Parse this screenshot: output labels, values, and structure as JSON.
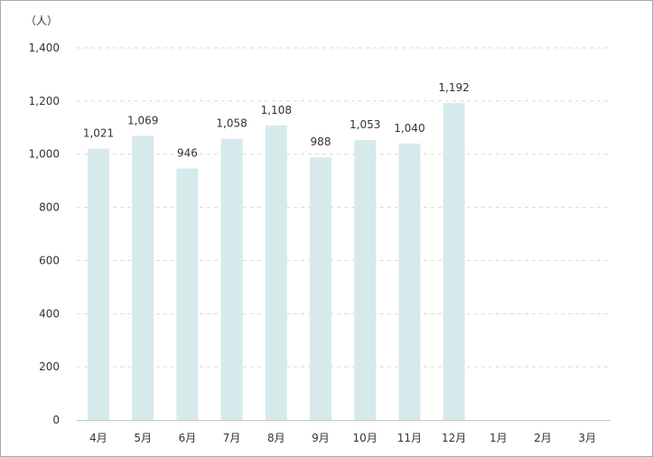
{
  "chart_data": {
    "type": "bar",
    "unit_label": "（人）",
    "categories": [
      "4月",
      "5月",
      "6月",
      "7月",
      "8月",
      "9月",
      "10月",
      "11月",
      "12月",
      "1月",
      "2月",
      "3月"
    ],
    "values": [
      1021,
      1069,
      946,
      1058,
      1108,
      988,
      1053,
      1040,
      1192,
      null,
      null,
      null
    ],
    "data_labels": [
      "1,021",
      "1,069",
      "946",
      "1,058",
      "1,108",
      "988",
      "1,053",
      "1,040",
      "1,192",
      null,
      null,
      null
    ],
    "ylim": [
      0,
      1400
    ],
    "yticks": [
      0,
      200,
      400,
      600,
      800,
      1000,
      1200,
      1400
    ],
    "ytick_labels": [
      "0",
      "200",
      "400",
      "600",
      "800",
      "1,000",
      "1,200",
      "1,400"
    ],
    "grid": true,
    "colors": {
      "bar": "#d6eaec",
      "grid": "#d9d9d9",
      "axis": "#c8c8c8",
      "text": "#333333",
      "border": "#a9a9a9"
    }
  }
}
